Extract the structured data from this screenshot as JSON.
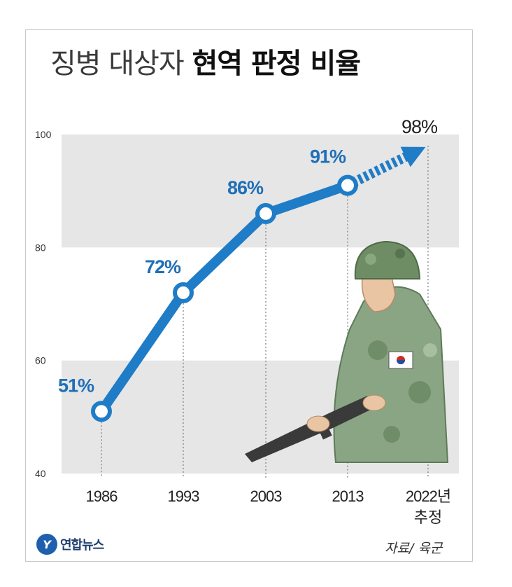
{
  "title": {
    "part1": "징병 대상자",
    "part2": "현역 판정 비율"
  },
  "chart_data": {
    "type": "line",
    "title": "징병 대상자 현역 판정 비율",
    "categories": [
      "1986",
      "1993",
      "2003",
      "2013",
      "2022년"
    ],
    "category_sublabels": [
      "",
      "",
      "",
      "",
      "추정"
    ],
    "values": [
      51,
      72,
      86,
      91,
      98
    ],
    "data_labels": [
      "51%",
      "72%",
      "86%",
      "91%",
      "98%"
    ],
    "estimated_last_point": true,
    "yticks": [
      40,
      60,
      80,
      100
    ],
    "ylim": [
      40,
      100
    ],
    "grid": "alternating horizontal bands",
    "colors": {
      "line": "#1f7cc7",
      "band": "#e6e6e6",
      "label": "#1f6fb7",
      "estimate_label": "#222222"
    }
  },
  "footer": {
    "logo_text": "연합뉴스",
    "source": "자료/ 육군"
  },
  "icons": {
    "logo": "yonhap-logo-icon",
    "illustration": "soldier-illustration-icon"
  }
}
